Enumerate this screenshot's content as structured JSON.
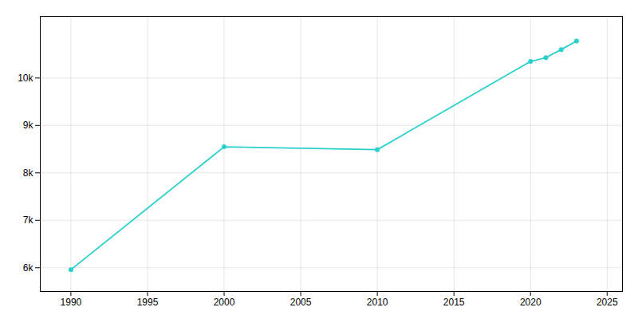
{
  "chart_data": {
    "type": "line",
    "x": [
      1990,
      2000,
      2010,
      2020,
      2021,
      2022,
      2023
    ],
    "values": [
      5960,
      8550,
      8490,
      10350,
      10430,
      10600,
      10780
    ],
    "color": "#29d0cc",
    "marker": "circle",
    "xlim": [
      1988,
      2026
    ],
    "ylim": [
      5500,
      11300
    ],
    "xticks": [
      1990,
      1995,
      2000,
      2005,
      2010,
      2015,
      2020,
      2025
    ],
    "yticks": [
      {
        "value": 6000,
        "label": "6k"
      },
      {
        "value": 7000,
        "label": "7k"
      },
      {
        "value": 8000,
        "label": "8k"
      },
      {
        "value": 9000,
        "label": "9k"
      },
      {
        "value": 10000,
        "label": "10k"
      }
    ],
    "grid": true
  }
}
